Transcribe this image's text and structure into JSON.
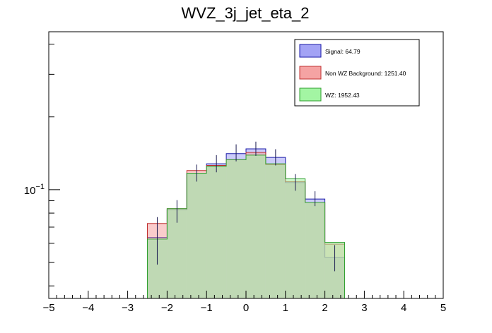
{
  "chart_data": {
    "type": "histogram",
    "title": "WVZ_3j_jet_eta_2",
    "xlabel": "",
    "ylabel": "",
    "x_range": [
      -5,
      5
    ],
    "y_scale": "log",
    "y_range": [
      0.0355,
      0.45
    ],
    "x_ticks": [
      -5,
      -4,
      -3,
      -2,
      -1,
      0,
      1,
      2,
      3,
      4,
      5
    ],
    "y_tick_labels": [
      {
        "value": 0.1,
        "label": "10",
        "sup": "−1"
      }
    ],
    "bin_edges": [
      -2.5,
      -2.0,
      -1.5,
      -1.0,
      -0.5,
      0.0,
      0.5,
      1.0,
      1.5,
      2.0,
      2.5
    ],
    "legend_position": "top-right",
    "series": [
      {
        "name": "Signal: 64.79",
        "legend_label": "Signal: 64.79",
        "fill": "#a3a3f5",
        "edge": "#1a1aa8",
        "values": [
          0.0635,
          0.0825,
          0.117,
          0.128,
          0.141,
          0.1475,
          0.136,
          0.107,
          0.0915,
          0.0525
        ],
        "errors": [
          [
            0.049,
            0.077
          ],
          [
            0.073,
            0.0905
          ],
          [
            0.108,
            0.127
          ],
          [
            0.118,
            0.139
          ],
          [
            0.131,
            0.154
          ],
          [
            0.138,
            0.158
          ],
          [
            0.126,
            0.147
          ],
          [
            0.099,
            0.116
          ],
          [
            0.0855,
            0.0985
          ],
          [
            0.046,
            0.059
          ]
        ]
      },
      {
        "name": "Non WZ Background: 1251.40",
        "legend_label": "Non WZ Background: 1251.40",
        "fill": "#f5a3a3",
        "edge": "#c03030",
        "values": [
          0.0725,
          0.0835,
          0.12,
          0.126,
          0.133,
          0.1425,
          0.127,
          0.108,
          0.0885,
          0.0595
        ],
        "errors": []
      },
      {
        "name": "WZ: 1952.43",
        "legend_label": "WZ: 1952.43",
        "fill": "#a3f5a3",
        "edge": "#30a030",
        "values": [
          0.0625,
          0.0835,
          0.117,
          0.125,
          0.133,
          0.139,
          0.128,
          0.111,
          0.0885,
          0.0605
        ],
        "errors": []
      }
    ]
  }
}
